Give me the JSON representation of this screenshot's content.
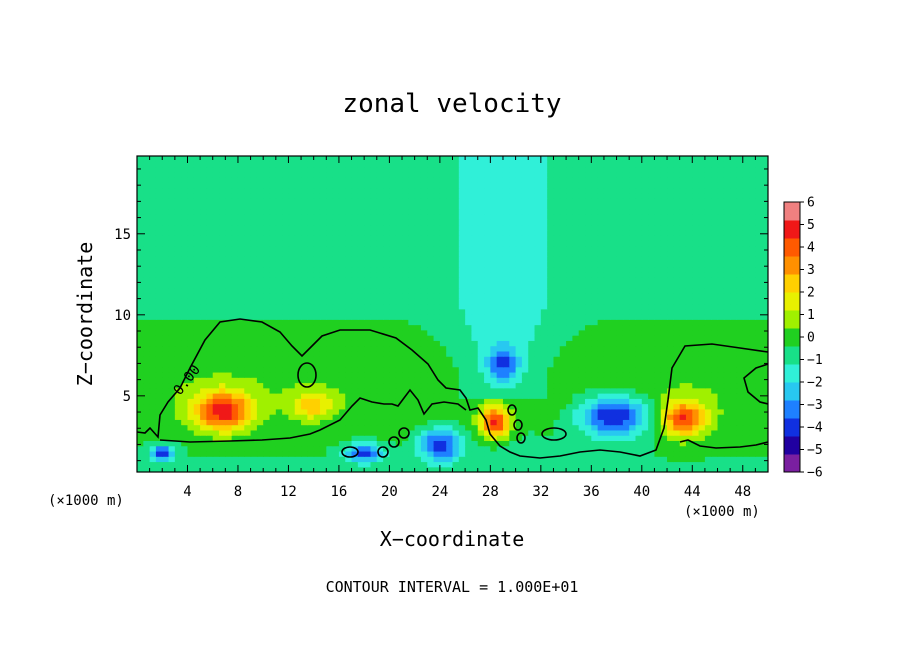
{
  "chart_data": {
    "type": "heatmap",
    "title": "zonal velocity",
    "xlabel": "X−coordinate",
    "ylabel": "Z−coordinate",
    "x_unit_label_left": "(×1000 m)",
    "x_unit_label_right": "(×1000 m)",
    "xlim": [
      0,
      50
    ],
    "ylim": [
      0.3,
      19.8
    ],
    "x_ticks": [
      4,
      8,
      12,
      16,
      20,
      24,
      28,
      32,
      36,
      40,
      44,
      48
    ],
    "x_tick_labels": [
      "4",
      "8",
      "12",
      "16",
      "20",
      "24",
      "28",
      "32",
      "36",
      "40",
      "44",
      "48"
    ],
    "y_ticks": [
      5,
      10,
      15
    ],
    "y_tick_labels": [
      "5",
      "10",
      "15"
    ],
    "colorbar": {
      "range": [
        -6,
        6
      ],
      "labels": [
        "6",
        "5",
        "4",
        "3",
        "2",
        "1",
        "0",
        "−1",
        "−2",
        "−3",
        "−4",
        "−5",
        "−6"
      ],
      "colors": [
        "#7a1fa0",
        "#2000a0",
        "#1030e0",
        "#1e80ff",
        "#28c8f0",
        "#30f0d8",
        "#18e088",
        "#20d020",
        "#a0f000",
        "#e8f000",
        "#ffd000",
        "#ff9000",
        "#ff5a00",
        "#f01818",
        "#f08080"
      ]
    },
    "contour_label": "0.00",
    "contour_interval_text": "CONTOUR INTERVAL = 1.000E+01",
    "grid": false,
    "features": [
      {
        "x": 6.8,
        "z": 4.1,
        "value": 5.0,
        "sx": 2.2,
        "sz": 1.2
      },
      {
        "x": 13.8,
        "z": 4.4,
        "value": 2.5,
        "sx": 1.6,
        "sz": 0.8
      },
      {
        "x": 28.4,
        "z": 3.4,
        "value": 5.0,
        "sx": 1.2,
        "sz": 1.0
      },
      {
        "x": 43.3,
        "z": 3.6,
        "value": 4.5,
        "sx": 1.8,
        "sz": 1.1
      },
      {
        "x": 37.8,
        "z": 3.8,
        "value": -4.5,
        "sx": 2.8,
        "sz": 1.3
      },
      {
        "x": 24.0,
        "z": 2.0,
        "value": -4.0,
        "sx": 1.6,
        "sz": 1.0
      },
      {
        "x": 29.0,
        "z": 7.0,
        "value": -2.8,
        "sx": 1.2,
        "sz": 1.0
      },
      {
        "x": 2.0,
        "z": 1.5,
        "value": -3.5,
        "sx": 1.0,
        "sz": 0.5
      },
      {
        "x": 18.0,
        "z": 1.5,
        "value": -3.5,
        "sx": 1.5,
        "sz": 0.6
      }
    ]
  }
}
